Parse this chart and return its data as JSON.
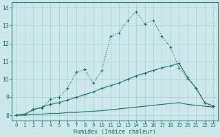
{
  "xlabel": "Humidex (Indice chaleur)",
  "bg_color": "#cce8e8",
  "grid_color": "#aad4d4",
  "line_color": "#1a6666",
  "xlim": [
    -0.5,
    23.5
  ],
  "ylim": [
    7.7,
    14.3
  ],
  "xticks": [
    0,
    1,
    2,
    3,
    4,
    5,
    6,
    7,
    8,
    9,
    10,
    11,
    12,
    13,
    14,
    15,
    16,
    17,
    18,
    19,
    20,
    21,
    22,
    23
  ],
  "yticks": [
    8,
    9,
    10,
    11,
    12,
    13,
    14
  ],
  "line1_x": [
    0,
    1,
    2,
    3,
    4,
    5,
    6,
    7,
    8,
    9,
    10,
    11,
    12,
    13,
    14,
    15,
    16,
    17,
    18,
    19,
    20,
    21,
    22,
    23
  ],
  "line1_y": [
    8.0,
    8.05,
    8.35,
    8.4,
    8.9,
    9.0,
    9.5,
    10.4,
    10.55,
    9.8,
    10.5,
    12.4,
    12.6,
    13.3,
    13.8,
    13.1,
    13.3,
    12.4,
    11.8,
    10.65,
    10.05,
    9.5,
    8.7,
    8.5
  ],
  "line2_x": [
    0,
    1,
    2,
    3,
    4,
    5,
    6,
    7,
    8,
    9,
    10,
    11,
    12,
    13,
    14,
    15,
    16,
    17,
    18,
    19,
    20,
    21,
    22,
    23
  ],
  "line2_y": [
    8.0,
    8.05,
    8.3,
    8.45,
    8.6,
    8.7,
    8.85,
    9.0,
    9.15,
    9.3,
    9.5,
    9.65,
    9.8,
    10.0,
    10.2,
    10.35,
    10.5,
    10.65,
    10.75,
    10.9,
    10.1,
    9.5,
    8.7,
    8.5
  ],
  "line3_x": [
    0,
    1,
    2,
    3,
    4,
    5,
    6,
    7,
    8,
    9,
    10,
    11,
    12,
    13,
    14,
    15,
    16,
    17,
    18,
    19,
    20,
    21,
    22,
    23
  ],
  "line3_y": [
    8.0,
    8.0,
    8.05,
    8.05,
    8.1,
    8.1,
    8.15,
    8.15,
    8.2,
    8.22,
    8.25,
    8.3,
    8.35,
    8.4,
    8.45,
    8.5,
    8.55,
    8.6,
    8.65,
    8.7,
    8.6,
    8.55,
    8.5,
    8.45
  ]
}
